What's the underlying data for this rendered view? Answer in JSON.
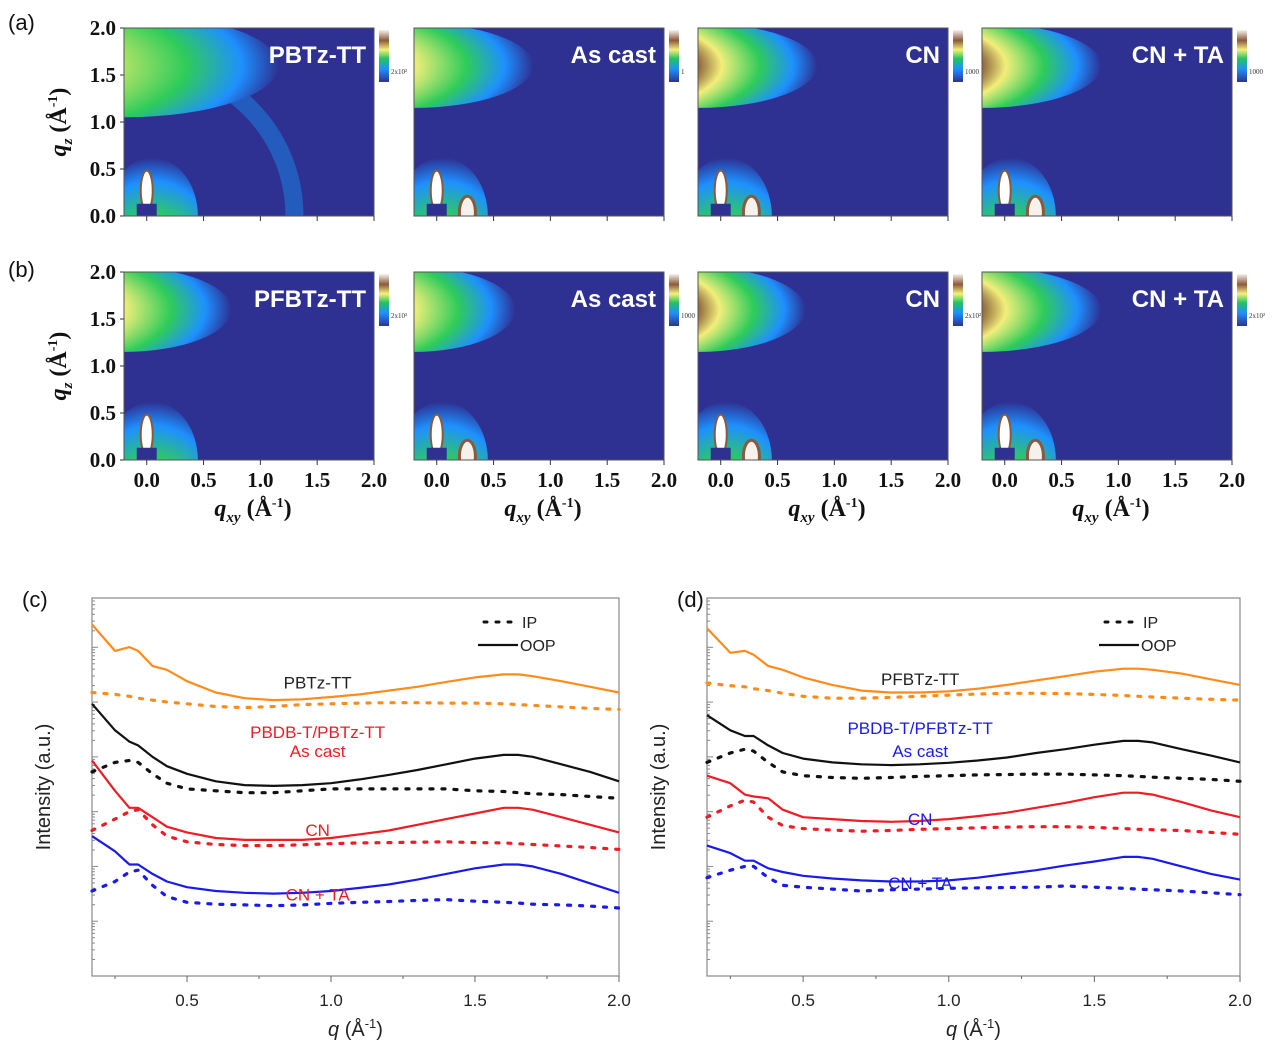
{
  "figure": {
    "panel_labels": [
      "(a)",
      "(b)",
      "(c)",
      "(d)"
    ]
  },
  "chart_data": [
    {
      "type": "heatmap",
      "panel": "(a)",
      "title": "PBTz-TT",
      "xlabel": "q_xy (Å^-1)",
      "ylabel": "q_z (Å^-1)",
      "xlim": [
        -0.2,
        2.0
      ],
      "ylim": [
        0.0,
        2.0
      ],
      "xticks": [
        "0.0",
        "0.5",
        "1.0",
        "1.5",
        "2.0"
      ],
      "yticks": [
        "0.0",
        "0.5",
        "1.0",
        "1.5",
        "2.0"
      ],
      "xtick_labels_shown": false,
      "colorbar": {
        "labels": [
          "2x10²"
        ]
      },
      "features": {
        "pi_stack_peak": {
          "qz": 1.6,
          "extent_qxy": 1.3,
          "intensity": "medium",
          "ring": true
        },
        "lamellar_peak": {
          "qxy": 0.0,
          "qz": 0.3
        },
        "lamellar_ip": false
      }
    },
    {
      "type": "heatmap",
      "panel": "(a)",
      "title": "As cast",
      "xlim": [
        -0.2,
        2.0
      ],
      "ylim": [
        0.0,
        2.0
      ],
      "colorbar": {
        "labels": [
          "1"
        ]
      },
      "features": {
        "pi_stack_peak": {
          "qz": 1.6,
          "extent_qxy": 1.0,
          "intensity": "high"
        },
        "lamellar_peak": {
          "qxy": 0.0,
          "qz": 0.3
        },
        "lamellar_ip": true
      }
    },
    {
      "type": "heatmap",
      "panel": "(a)",
      "title": "CN",
      "xlim": [
        -0.2,
        2.0
      ],
      "ylim": [
        0.0,
        2.0
      ],
      "colorbar": {
        "labels": [
          "1000"
        ]
      },
      "features": {
        "pi_stack_peak": {
          "qz": 1.6,
          "extent_qxy": 1.0,
          "intensity": "very-high"
        },
        "lamellar_peak": {
          "qxy": 0.0,
          "qz": 0.3
        },
        "lamellar_ip": true
      }
    },
    {
      "type": "heatmap",
      "panel": "(a)",
      "title": "CN + TA",
      "xlim": [
        -0.2,
        2.0
      ],
      "ylim": [
        0.0,
        2.0
      ],
      "colorbar": {
        "labels": [
          "1000"
        ]
      },
      "features": {
        "pi_stack_peak": {
          "qz": 1.6,
          "extent_qxy": 1.0,
          "intensity": "very-high"
        },
        "lamellar_peak": {
          "qxy": 0.0,
          "qz": 0.3
        },
        "lamellar_ip": true
      }
    },
    {
      "type": "heatmap",
      "panel": "(b)",
      "title": "PFBTz-TT",
      "xlabel": "q_xy (Å^-1)",
      "ylabel": "q_z (Å^-1)",
      "xlim": [
        -0.2,
        2.0
      ],
      "ylim": [
        0.0,
        2.0
      ],
      "xticks": [
        "0.0",
        "0.5",
        "1.0",
        "1.5",
        "2.0"
      ],
      "yticks": [
        "0.0",
        "0.5",
        "1.0",
        "1.5",
        "2.0"
      ],
      "colorbar": {
        "labels": [
          "2x10²"
        ]
      },
      "features": {
        "pi_stack_peak": {
          "qz": 1.6,
          "extent_qxy": 0.9,
          "intensity": "high"
        },
        "lamellar_peak": {
          "qxy": 0.0,
          "qz": 0.3
        },
        "lamellar_ip": false
      }
    },
    {
      "type": "heatmap",
      "panel": "(b)",
      "title": "As cast",
      "xlabel": "q_xy (Å^-1)",
      "xlim": [
        -0.2,
        2.0
      ],
      "ylim": [
        0.0,
        2.0
      ],
      "xticks": [
        "0.0",
        "0.5",
        "1.0",
        "1.5",
        "2.0"
      ],
      "colorbar": {
        "labels": [
          "1000"
        ]
      },
      "features": {
        "pi_stack_peak": {
          "qz": 1.6,
          "extent_qxy": 0.85,
          "intensity": "high"
        },
        "lamellar_peak": {
          "qxy": 0.0,
          "qz": 0.3
        },
        "lamellar_ip": true
      }
    },
    {
      "type": "heatmap",
      "panel": "(b)",
      "title": "CN",
      "xlabel": "q_xy (Å^-1)",
      "xlim": [
        -0.2,
        2.0
      ],
      "ylim": [
        0.0,
        2.0
      ],
      "xticks": [
        "0.0",
        "0.5",
        "1.0",
        "1.5",
        "2.0"
      ],
      "colorbar": {
        "labels": [
          "2x10²"
        ]
      },
      "features": {
        "pi_stack_peak": {
          "qz": 1.6,
          "extent_qxy": 0.9,
          "intensity": "very-high"
        },
        "lamellar_peak": {
          "qxy": 0.0,
          "qz": 0.3
        },
        "lamellar_ip": true
      }
    },
    {
      "type": "heatmap",
      "panel": "(b)",
      "title": "CN + TA",
      "xlabel": "q_xy (Å^-1)",
      "xlim": [
        -0.2,
        2.0
      ],
      "ylim": [
        0.0,
        2.0
      ],
      "xticks": [
        "0.0",
        "0.5",
        "1.0",
        "1.5",
        "2.0"
      ],
      "colorbar": {
        "labels": [
          "2x10²"
        ]
      },
      "features": {
        "pi_stack_peak": {
          "qz": 1.6,
          "extent_qxy": 1.0,
          "intensity": "very-high"
        },
        "lamellar_peak": {
          "qxy": 0.0,
          "qz": 0.3
        },
        "lamellar_ip": true
      }
    },
    {
      "type": "line",
      "panel": "(c)",
      "xlabel": "q (Å^-1)",
      "ylabel": "Intensity (a.u.)",
      "xlim": [
        0.17,
        2.0
      ],
      "ylim": [
        0,
        100
      ],
      "yscale": "log (offset, unlabeled)",
      "xticks": [
        "0.5",
        "1.0",
        "1.5",
        "2.0"
      ],
      "legend": {
        "position": "top-right",
        "entries": [
          {
            "label": "IP",
            "style": "dotted"
          },
          {
            "label": "OOP",
            "style": "solid"
          }
        ]
      },
      "annotations": [
        {
          "text": "PBTz-TT",
          "color": "#222222"
        },
        {
          "text": "PBDB-T/PBTz-TT",
          "color": "#ee1c25"
        },
        {
          "text": "As cast",
          "color": "#ee1c25"
        },
        {
          "text": "CN",
          "color": "#ee1c25"
        },
        {
          "text": "CN + TA",
          "color": "#ee1c25"
        }
      ],
      "x": [
        0.17,
        0.25,
        0.3,
        0.33,
        0.38,
        0.43,
        0.5,
        0.6,
        0.7,
        0.8,
        0.9,
        1.0,
        1.1,
        1.2,
        1.3,
        1.4,
        1.5,
        1.6,
        1.65,
        1.7,
        1.8,
        1.9,
        2.0
      ],
      "series": [
        {
          "name": "PBTz-TT OOP",
          "style": "solid",
          "color": "#ff8c1a",
          "values": [
            93,
            86,
            87,
            86,
            82,
            81,
            78,
            75,
            73.5,
            73,
            73.2,
            73.8,
            74.5,
            75.5,
            76.5,
            77.8,
            79,
            79.8,
            79.8,
            79.3,
            78,
            76.5,
            75
          ]
        },
        {
          "name": "PBTz-TT IP",
          "style": "dotted",
          "color": "#ff8c1a",
          "values": [
            75,
            74.5,
            74,
            73.5,
            73,
            72.5,
            72,
            71.3,
            71,
            71.3,
            71.8,
            72,
            72.2,
            72.3,
            72.3,
            72.2,
            72.2,
            72,
            71.8,
            71.6,
            71.2,
            70.8,
            70.5
          ]
        },
        {
          "name": "PBDB-T/PBTz-TT As cast OOP",
          "style": "solid",
          "color": "#111111",
          "values": [
            72,
            65,
            62,
            61,
            58,
            55.5,
            53.5,
            51.5,
            50.5,
            50.3,
            50.5,
            51,
            52,
            53.2,
            54.5,
            56,
            57.5,
            58.5,
            58.5,
            58,
            56,
            54,
            51.5
          ]
        },
        {
          "name": "PBDB-T/PBTz-TT As cast IP",
          "style": "dotted",
          "color": "#111111",
          "values": [
            54,
            56.5,
            57,
            56.5,
            53.5,
            51,
            49.5,
            49,
            48.5,
            48.5,
            49,
            49.5,
            49.5,
            49.5,
            49.5,
            49.5,
            49,
            48.8,
            48.5,
            48.2,
            48,
            47.5,
            47
          ]
        },
        {
          "name": "CN OOP",
          "style": "solid",
          "color": "#ee1c25",
          "values": [
            57,
            49,
            44.5,
            44.5,
            42,
            39.5,
            38,
            36.5,
            36,
            36,
            36,
            36.5,
            37.5,
            38.5,
            40,
            41.5,
            43,
            44.5,
            44.5,
            44,
            42,
            40,
            38
          ]
        },
        {
          "name": "CN IP",
          "style": "dotted",
          "color": "#ee1c25",
          "values": [
            38.5,
            41.5,
            43.5,
            44,
            40,
            37,
            35.5,
            34.8,
            34.5,
            34.5,
            34.7,
            35,
            35.2,
            35.3,
            35.4,
            35.5,
            35.3,
            35.2,
            35,
            34.8,
            34.4,
            34,
            33.5
          ]
        },
        {
          "name": "CN + TA OOP",
          "style": "solid",
          "color": "#1a1aee",
          "values": [
            37,
            33,
            29.5,
            29.5,
            27,
            25,
            23.5,
            22.5,
            22,
            21.8,
            22,
            22.5,
            23.3,
            24.2,
            25.5,
            27,
            28.5,
            29.5,
            29.5,
            29,
            27,
            24.5,
            22
          ]
        },
        {
          "name": "CN + TA IP",
          "style": "dotted",
          "color": "#1a1aee",
          "values": [
            22.5,
            25,
            27.5,
            28,
            24,
            21,
            19.5,
            19,
            18.8,
            18.6,
            18.8,
            19.2,
            19.5,
            19.7,
            20,
            20.2,
            19.8,
            19.5,
            19.3,
            19,
            18.8,
            18.5,
            18
          ]
        }
      ]
    },
    {
      "type": "line",
      "panel": "(d)",
      "xlabel": "q (Å^-1)",
      "ylabel": "Intensity (a.u.)",
      "xlim": [
        0.17,
        2.0
      ],
      "ylim": [
        0,
        100
      ],
      "yscale": "log (offset, unlabeled)",
      "xticks": [
        "0.5",
        "1.0",
        "1.5",
        "2.0"
      ],
      "legend": {
        "position": "top-right",
        "entries": [
          {
            "label": "IP",
            "style": "dotted"
          },
          {
            "label": "OOP",
            "style": "solid"
          }
        ]
      },
      "annotations": [
        {
          "text": "PFBTz-TT",
          "color": "#222222"
        },
        {
          "text": "PBDB-T/PFBTz-TT",
          "color": "#1a1aee"
        },
        {
          "text": "As cast",
          "color": "#1a1aee"
        },
        {
          "text": "CN",
          "color": "#1a1aee"
        },
        {
          "text": "CN + TA",
          "color": "#1a1aee"
        }
      ],
      "x": [
        0.17,
        0.25,
        0.3,
        0.33,
        0.38,
        0.43,
        0.5,
        0.6,
        0.7,
        0.8,
        0.9,
        1.0,
        1.1,
        1.2,
        1.3,
        1.4,
        1.5,
        1.6,
        1.65,
        1.7,
        1.8,
        1.9,
        2.0
      ],
      "series": [
        {
          "name": "PFBTz-TT OOP",
          "style": "solid",
          "color": "#ff8c1a",
          "values": [
            92,
            85.5,
            86,
            85,
            82,
            81,
            79,
            77,
            75.5,
            75,
            75,
            75.3,
            76,
            77,
            78.2,
            79.3,
            80.5,
            81.3,
            81.3,
            81,
            80,
            78.5,
            77
          ]
        },
        {
          "name": "PFBTz-TT IP",
          "style": "dotted",
          "color": "#ff8c1a",
          "values": [
            77.5,
            76.8,
            76.5,
            76,
            75.5,
            74.8,
            74,
            73.5,
            73.5,
            73.7,
            74,
            74.3,
            74.6,
            74.8,
            74.8,
            74.7,
            74.5,
            74.2,
            74,
            73.8,
            73.5,
            73.2,
            73
          ]
        },
        {
          "name": "PBDB-T/PFBTz-TT As cast OOP",
          "style": "solid",
          "color": "#111111",
          "values": [
            69,
            65,
            63.5,
            63.5,
            61,
            59,
            57.5,
            56.5,
            56,
            55.8,
            56,
            56.4,
            57,
            57.8,
            59,
            60,
            61.2,
            62.2,
            62.2,
            61.8,
            60,
            58.3,
            56.5
          ]
        },
        {
          "name": "PBDB-T/PFBTz-TT As cast IP",
          "style": "dotted",
          "color": "#111111",
          "values": [
            56.5,
            59,
            60,
            59.5,
            56.5,
            54,
            53,
            52.5,
            52.3,
            52.5,
            52.8,
            53,
            53.2,
            53.3,
            53.4,
            53.4,
            53.2,
            53,
            52.8,
            52.6,
            52.3,
            52,
            51.5
          ]
        },
        {
          "name": "CN OOP",
          "style": "solid",
          "color": "#ee1c25",
          "values": [
            53,
            51,
            48,
            47.5,
            47,
            44,
            42,
            41.5,
            41,
            40.8,
            41,
            41.5,
            42.3,
            43.2,
            44.5,
            45.8,
            47.3,
            48.5,
            48.5,
            48,
            46,
            43.8,
            42
          ]
        },
        {
          "name": "CN IP",
          "style": "dotted",
          "color": "#ee1c25",
          "values": [
            42,
            45,
            46.5,
            46,
            42,
            39.8,
            39,
            38.6,
            38.3,
            38.5,
            38.8,
            39,
            39.2,
            39.4,
            39.5,
            39.5,
            39.3,
            39,
            38.8,
            38.7,
            38.5,
            38,
            37.5
          ]
        },
        {
          "name": "CN + TA OOP",
          "style": "solid",
          "color": "#1a1aee",
          "values": [
            34.5,
            32.5,
            30.5,
            30.5,
            28.5,
            27.5,
            26.5,
            25.8,
            25.3,
            25,
            25,
            25.3,
            26,
            27,
            28,
            29.2,
            30.3,
            31.5,
            31.5,
            31,
            29,
            27,
            25.5
          ]
        },
        {
          "name": "CN + TA IP",
          "style": "dotted",
          "color": "#1a1aee",
          "values": [
            26,
            28,
            29,
            29,
            26,
            24,
            23.5,
            23,
            22.5,
            22.8,
            23,
            23.2,
            23.3,
            23.4,
            23.5,
            23.8,
            23.5,
            23.2,
            23,
            22.8,
            22.5,
            22,
            21.5
          ]
        }
      ]
    }
  ]
}
